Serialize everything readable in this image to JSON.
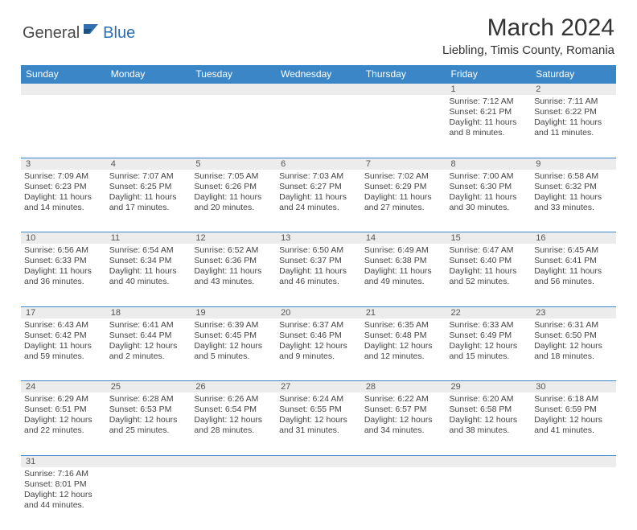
{
  "brand": {
    "part1": "General",
    "part2": "Blue"
  },
  "title": "March 2024",
  "location": "Liebling, Timis County, Romania",
  "colors": {
    "header_bg": "#3b86c6",
    "header_text": "#ffffff",
    "daynum_bg": "#ececec",
    "border": "#3b86c6",
    "text": "#444444",
    "brand_blue": "#2f6fb0"
  },
  "day_headers": [
    "Sunday",
    "Monday",
    "Tuesday",
    "Wednesday",
    "Thursday",
    "Friday",
    "Saturday"
  ],
  "weeks": [
    {
      "nums": [
        "",
        "",
        "",
        "",
        "",
        "1",
        "2"
      ],
      "cells": [
        null,
        null,
        null,
        null,
        null,
        {
          "sunrise": "Sunrise: 7:12 AM",
          "sunset": "Sunset: 6:21 PM",
          "day1": "Daylight: 11 hours",
          "day2": "and 8 minutes."
        },
        {
          "sunrise": "Sunrise: 7:11 AM",
          "sunset": "Sunset: 6:22 PM",
          "day1": "Daylight: 11 hours",
          "day2": "and 11 minutes."
        }
      ]
    },
    {
      "nums": [
        "3",
        "4",
        "5",
        "6",
        "7",
        "8",
        "9"
      ],
      "cells": [
        {
          "sunrise": "Sunrise: 7:09 AM",
          "sunset": "Sunset: 6:23 PM",
          "day1": "Daylight: 11 hours",
          "day2": "and 14 minutes."
        },
        {
          "sunrise": "Sunrise: 7:07 AM",
          "sunset": "Sunset: 6:25 PM",
          "day1": "Daylight: 11 hours",
          "day2": "and 17 minutes."
        },
        {
          "sunrise": "Sunrise: 7:05 AM",
          "sunset": "Sunset: 6:26 PM",
          "day1": "Daylight: 11 hours",
          "day2": "and 20 minutes."
        },
        {
          "sunrise": "Sunrise: 7:03 AM",
          "sunset": "Sunset: 6:27 PM",
          "day1": "Daylight: 11 hours",
          "day2": "and 24 minutes."
        },
        {
          "sunrise": "Sunrise: 7:02 AM",
          "sunset": "Sunset: 6:29 PM",
          "day1": "Daylight: 11 hours",
          "day2": "and 27 minutes."
        },
        {
          "sunrise": "Sunrise: 7:00 AM",
          "sunset": "Sunset: 6:30 PM",
          "day1": "Daylight: 11 hours",
          "day2": "and 30 minutes."
        },
        {
          "sunrise": "Sunrise: 6:58 AM",
          "sunset": "Sunset: 6:32 PM",
          "day1": "Daylight: 11 hours",
          "day2": "and 33 minutes."
        }
      ]
    },
    {
      "nums": [
        "10",
        "11",
        "12",
        "13",
        "14",
        "15",
        "16"
      ],
      "cells": [
        {
          "sunrise": "Sunrise: 6:56 AM",
          "sunset": "Sunset: 6:33 PM",
          "day1": "Daylight: 11 hours",
          "day2": "and 36 minutes."
        },
        {
          "sunrise": "Sunrise: 6:54 AM",
          "sunset": "Sunset: 6:34 PM",
          "day1": "Daylight: 11 hours",
          "day2": "and 40 minutes."
        },
        {
          "sunrise": "Sunrise: 6:52 AM",
          "sunset": "Sunset: 6:36 PM",
          "day1": "Daylight: 11 hours",
          "day2": "and 43 minutes."
        },
        {
          "sunrise": "Sunrise: 6:50 AM",
          "sunset": "Sunset: 6:37 PM",
          "day1": "Daylight: 11 hours",
          "day2": "and 46 minutes."
        },
        {
          "sunrise": "Sunrise: 6:49 AM",
          "sunset": "Sunset: 6:38 PM",
          "day1": "Daylight: 11 hours",
          "day2": "and 49 minutes."
        },
        {
          "sunrise": "Sunrise: 6:47 AM",
          "sunset": "Sunset: 6:40 PM",
          "day1": "Daylight: 11 hours",
          "day2": "and 52 minutes."
        },
        {
          "sunrise": "Sunrise: 6:45 AM",
          "sunset": "Sunset: 6:41 PM",
          "day1": "Daylight: 11 hours",
          "day2": "and 56 minutes."
        }
      ]
    },
    {
      "nums": [
        "17",
        "18",
        "19",
        "20",
        "21",
        "22",
        "23"
      ],
      "cells": [
        {
          "sunrise": "Sunrise: 6:43 AM",
          "sunset": "Sunset: 6:42 PM",
          "day1": "Daylight: 11 hours",
          "day2": "and 59 minutes."
        },
        {
          "sunrise": "Sunrise: 6:41 AM",
          "sunset": "Sunset: 6:44 PM",
          "day1": "Daylight: 12 hours",
          "day2": "and 2 minutes."
        },
        {
          "sunrise": "Sunrise: 6:39 AM",
          "sunset": "Sunset: 6:45 PM",
          "day1": "Daylight: 12 hours",
          "day2": "and 5 minutes."
        },
        {
          "sunrise": "Sunrise: 6:37 AM",
          "sunset": "Sunset: 6:46 PM",
          "day1": "Daylight: 12 hours",
          "day2": "and 9 minutes."
        },
        {
          "sunrise": "Sunrise: 6:35 AM",
          "sunset": "Sunset: 6:48 PM",
          "day1": "Daylight: 12 hours",
          "day2": "and 12 minutes."
        },
        {
          "sunrise": "Sunrise: 6:33 AM",
          "sunset": "Sunset: 6:49 PM",
          "day1": "Daylight: 12 hours",
          "day2": "and 15 minutes."
        },
        {
          "sunrise": "Sunrise: 6:31 AM",
          "sunset": "Sunset: 6:50 PM",
          "day1": "Daylight: 12 hours",
          "day2": "and 18 minutes."
        }
      ]
    },
    {
      "nums": [
        "24",
        "25",
        "26",
        "27",
        "28",
        "29",
        "30"
      ],
      "cells": [
        {
          "sunrise": "Sunrise: 6:29 AM",
          "sunset": "Sunset: 6:51 PM",
          "day1": "Daylight: 12 hours",
          "day2": "and 22 minutes."
        },
        {
          "sunrise": "Sunrise: 6:28 AM",
          "sunset": "Sunset: 6:53 PM",
          "day1": "Daylight: 12 hours",
          "day2": "and 25 minutes."
        },
        {
          "sunrise": "Sunrise: 6:26 AM",
          "sunset": "Sunset: 6:54 PM",
          "day1": "Daylight: 12 hours",
          "day2": "and 28 minutes."
        },
        {
          "sunrise": "Sunrise: 6:24 AM",
          "sunset": "Sunset: 6:55 PM",
          "day1": "Daylight: 12 hours",
          "day2": "and 31 minutes."
        },
        {
          "sunrise": "Sunrise: 6:22 AM",
          "sunset": "Sunset: 6:57 PM",
          "day1": "Daylight: 12 hours",
          "day2": "and 34 minutes."
        },
        {
          "sunrise": "Sunrise: 6:20 AM",
          "sunset": "Sunset: 6:58 PM",
          "day1": "Daylight: 12 hours",
          "day2": "and 38 minutes."
        },
        {
          "sunrise": "Sunrise: 6:18 AM",
          "sunset": "Sunset: 6:59 PM",
          "day1": "Daylight: 12 hours",
          "day2": "and 41 minutes."
        }
      ]
    },
    {
      "nums": [
        "31",
        "",
        "",
        "",
        "",
        "",
        ""
      ],
      "cells": [
        {
          "sunrise": "Sunrise: 7:16 AM",
          "sunset": "Sunset: 8:01 PM",
          "day1": "Daylight: 12 hours",
          "day2": "and 44 minutes."
        },
        null,
        null,
        null,
        null,
        null,
        null
      ]
    }
  ]
}
